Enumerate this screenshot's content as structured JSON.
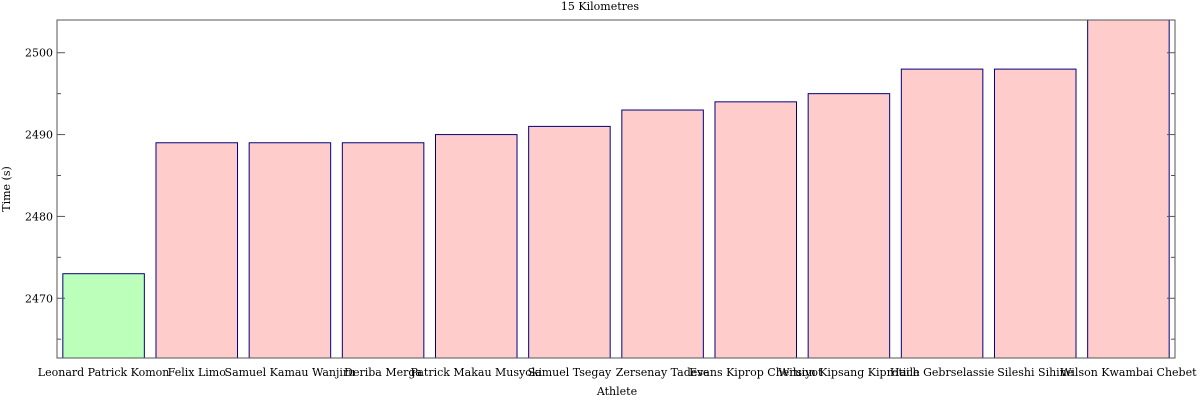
{
  "chart_data": {
    "type": "bar",
    "title": "15 Kilometres",
    "xlabel": "Athlete",
    "ylabel": "Time (s)",
    "categories": [
      "Leonard Patrick Komon",
      "Felix Limo",
      "Samuel Kamau Wanjiru",
      "Deriba Merga",
      "Patrick Makau Musyoki",
      "Samuel Tsegay",
      "Zersenay Tadese",
      "Evans Kiprop Cheruiyot",
      "Wilson Kipsang Kiprotich",
      "Haile Gebrselassie",
      "Sileshi Sihine",
      "Wilson Kwambai Chebet"
    ],
    "values": [
      2473,
      2489,
      2489,
      2489,
      2490,
      2491,
      2493,
      2494,
      2495,
      2498,
      2498,
      2504
    ],
    "ylim": [
      2462.7,
      2504
    ],
    "yticks": [
      2470,
      2480,
      2490,
      2500
    ],
    "grid": false,
    "colors": {
      "highlight_fill": "#bbffbb",
      "bar_fill": "#ffcccc",
      "bar_stroke": "#000080",
      "axis": "#555555"
    }
  }
}
